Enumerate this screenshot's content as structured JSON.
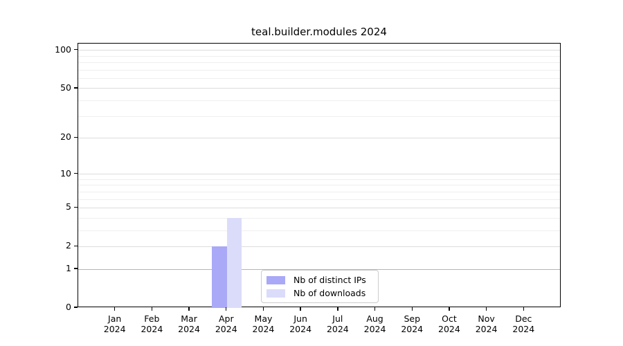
{
  "chart_data": {
    "type": "bar",
    "title": "teal.builder.modules 2024",
    "xlabel": "",
    "ylabel": "",
    "categories": [
      "Jan",
      "Feb",
      "Mar",
      "Apr",
      "May",
      "Jun",
      "Jul",
      "Aug",
      "Sep",
      "Oct",
      "Nov",
      "Dec"
    ],
    "year_label": "2024",
    "series": [
      {
        "name": "Nb of distinct IPs",
        "color": "#a9a9f7",
        "values": [
          0,
          0,
          0,
          2,
          0,
          0,
          0,
          0,
          0,
          0,
          0,
          0
        ]
      },
      {
        "name": "Nb of downloads",
        "color": "#dbdcfa",
        "values": [
          0,
          0,
          0,
          4,
          0,
          0,
          0,
          0,
          0,
          0,
          0,
          0
        ]
      }
    ],
    "yscale": "log10(value+1)",
    "ylim": [
      0,
      113
    ],
    "yticks": [
      0,
      1,
      2,
      5,
      10,
      20,
      50,
      100
    ],
    "minor_gridlines": [
      3,
      4,
      6,
      7,
      8,
      9,
      30,
      40,
      60,
      70,
      80,
      90
    ],
    "grid": {
      "major_color": "#dcdcdc",
      "minor_color": "#efefef",
      "unit_line_color": "#b4b4b4"
    },
    "legend_position": "lower center"
  }
}
